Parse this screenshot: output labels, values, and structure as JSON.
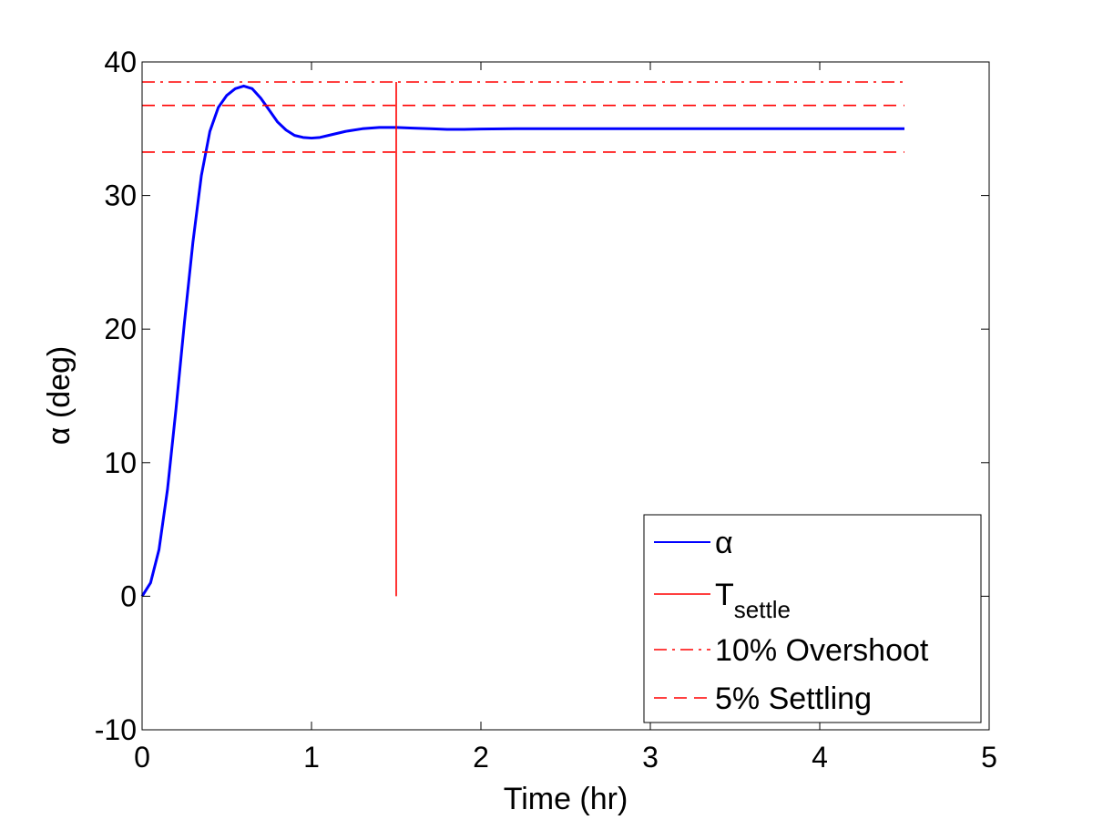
{
  "chart_data": {
    "type": "line",
    "title": "",
    "xlabel": "Time (hr)",
    "ylabel": "α (deg)",
    "xlim": [
      0,
      5
    ],
    "ylim": [
      -10,
      40
    ],
    "xticks": [
      0,
      1,
      2,
      3,
      4,
      5
    ],
    "yticks": [
      -10,
      0,
      10,
      20,
      30,
      40
    ],
    "grid": false,
    "legend_position": "bottom-right",
    "series": [
      {
        "name": "α",
        "color": "#0000ff",
        "style": "solid",
        "x": [
          0,
          0.05,
          0.1,
          0.15,
          0.2,
          0.25,
          0.3,
          0.35,
          0.4,
          0.45,
          0.5,
          0.55,
          0.6,
          0.65,
          0.7,
          0.75,
          0.8,
          0.85,
          0.9,
          0.95,
          1.0,
          1.05,
          1.1,
          1.2,
          1.3,
          1.4,
          1.5,
          1.6,
          1.7,
          1.8,
          1.9,
          2.0,
          2.2,
          2.5,
          3.0,
          3.5,
          4.0,
          4.5
        ],
        "y": [
          0,
          1,
          3.5,
          8,
          14,
          20.5,
          26.5,
          31.5,
          34.8,
          36.6,
          37.5,
          38.0,
          38.2,
          38.0,
          37.3,
          36.4,
          35.5,
          34.9,
          34.5,
          34.35,
          34.3,
          34.35,
          34.5,
          34.8,
          35.0,
          35.1,
          35.1,
          35.05,
          35.0,
          34.95,
          34.95,
          34.98,
          35.0,
          35.0,
          35.0,
          35.0,
          35.0,
          35.0
        ]
      },
      {
        "name": "T_settle",
        "color": "#ff0000",
        "style": "solid",
        "x": [
          1.5,
          1.5
        ],
        "y": [
          0,
          38.5
        ]
      },
      {
        "name": "10% Overshoot",
        "color": "#ff0000",
        "style": "dashdot",
        "x": [
          0,
          4.5
        ],
        "y": [
          38.5,
          38.5
        ]
      },
      {
        "name": "5% Settling",
        "color": "#ff0000",
        "style": "dashed",
        "x": [
          0,
          4.5
        ],
        "y": [
          36.75,
          36.75
        ]
      },
      {
        "name": "5% Settling",
        "color": "#ff0000",
        "style": "dashed",
        "x": [
          0,
          4.5
        ],
        "y": [
          33.25,
          33.25
        ]
      }
    ],
    "legend": [
      {
        "label": "α",
        "sub": "",
        "color": "#0000ff",
        "style": "solid"
      },
      {
        "label": "T",
        "sub": "settle",
        "color": "#ff0000",
        "style": "solid"
      },
      {
        "label": "10% Overshoot",
        "sub": "",
        "color": "#ff0000",
        "style": "dashdot"
      },
      {
        "label": "5% Settling",
        "sub": "",
        "color": "#ff0000",
        "style": "dashed"
      }
    ]
  }
}
